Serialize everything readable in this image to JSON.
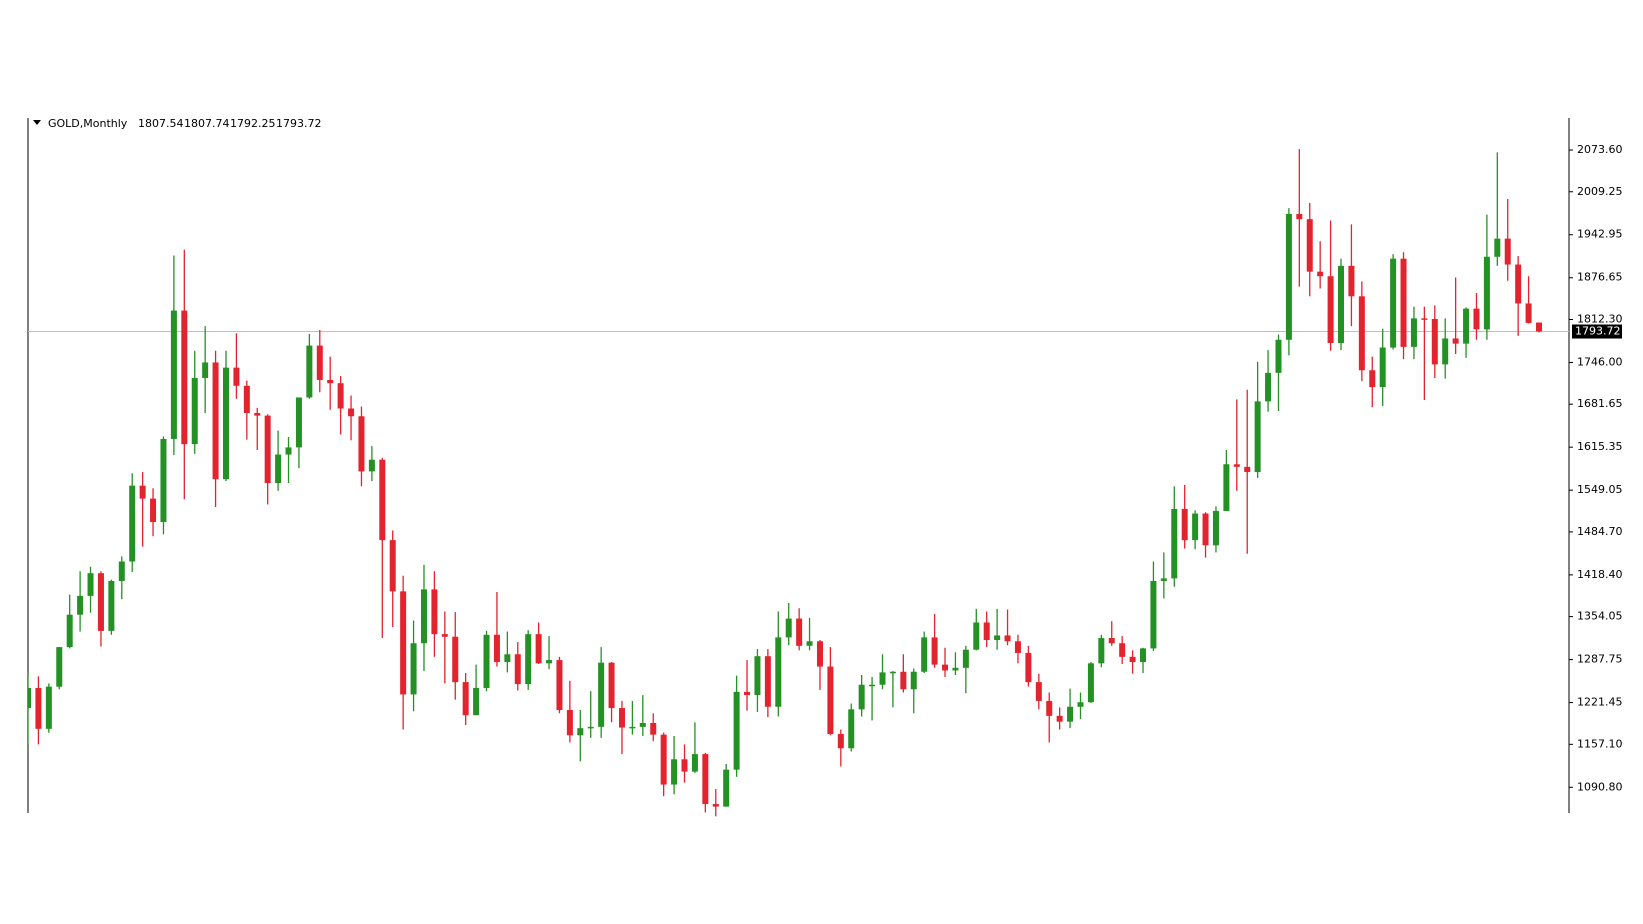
{
  "chart_data": {
    "type": "candlestick",
    "title": "GOLD,Monthly",
    "up_color": "#249124",
    "down_color": "#e3232d",
    "ylim": [
      1045,
      2123
    ],
    "yticks": [
      {
        "value": 1090.8,
        "label": "1090.80"
      },
      {
        "value": 1157.1,
        "label": "1157.10"
      },
      1221.45,
      1287.75,
      1354.05,
      {
        "value": 1418.4,
        "label": "1418.40"
      },
      {
        "value": 1484.7,
        "label": "1484.70"
      },
      1549.05,
      1615.35,
      1681.65,
      {
        "value": 1746,
        "label": "1746.00"
      },
      {
        "value": 1812.3,
        "label": "1812.30"
      },
      1876.65,
      1942.95,
      2009.25,
      {
        "value": 2073.6,
        "label": "2073.60"
      }
    ],
    "ohlc": [
      [
        1213,
        1265,
        1157,
        1244
      ],
      [
        1244,
        1262,
        1157,
        1181
      ],
      [
        1181,
        1251,
        1175,
        1246
      ],
      [
        1246,
        1307,
        1242,
        1307
      ],
      [
        1307,
        1388,
        1305,
        1357
      ],
      [
        1357,
        1424,
        1331,
        1386
      ],
      [
        1386,
        1431,
        1360,
        1421
      ],
      [
        1421,
        1424,
        1308,
        1332
      ],
      [
        1332,
        1411,
        1326,
        1409
      ],
      [
        1409,
        1447,
        1381,
        1439
      ],
      [
        1439,
        1575,
        1423,
        1556
      ],
      [
        1556,
        1577,
        1462,
        1536
      ],
      [
        1536,
        1552,
        1478,
        1500
      ],
      [
        1500,
        1632,
        1481,
        1628
      ],
      [
        1628,
        1911,
        1603,
        1826
      ],
      [
        1826,
        1920,
        1535,
        1620
      ],
      [
        1620,
        1764,
        1605,
        1722
      ],
      [
        1722,
        1802,
        1668,
        1746
      ],
      [
        1746,
        1764,
        1523,
        1566
      ],
      [
        1566,
        1764,
        1563,
        1738
      ],
      [
        1738,
        1791,
        1690,
        1710
      ],
      [
        1710,
        1718,
        1627,
        1668
      ],
      [
        1668,
        1676,
        1611,
        1664
      ],
      [
        1664,
        1666,
        1527,
        1560
      ],
      [
        1560,
        1641,
        1548,
        1604
      ],
      [
        1604,
        1631,
        1560,
        1615
      ],
      [
        1615,
        1692,
        1583,
        1692
      ],
      [
        1692,
        1790,
        1690,
        1772
      ],
      [
        1772,
        1796,
        1700,
        1719
      ],
      [
        1719,
        1755,
        1673,
        1714
      ],
      [
        1714,
        1725,
        1635,
        1675
      ],
      [
        1675,
        1695,
        1626,
        1663
      ],
      [
        1663,
        1678,
        1555,
        1578
      ],
      [
        1578,
        1617,
        1563,
        1596
      ],
      [
        1596,
        1599,
        1321,
        1472
      ],
      [
        1472,
        1487,
        1338,
        1393
      ],
      [
        1393,
        1417,
        1180,
        1234
      ],
      [
        1234,
        1348,
        1208,
        1313
      ],
      [
        1313,
        1434,
        1270,
        1396
      ],
      [
        1396,
        1424,
        1292,
        1327
      ],
      [
        1327,
        1362,
        1251,
        1323
      ],
      [
        1323,
        1361,
        1226,
        1253
      ],
      [
        1253,
        1267,
        1187,
        1202
      ],
      [
        1202,
        1280,
        1202,
        1244
      ],
      [
        1244,
        1332,
        1239,
        1326
      ],
      [
        1326,
        1392,
        1277,
        1284
      ],
      [
        1284,
        1331,
        1268,
        1296
      ],
      [
        1296,
        1315,
        1240,
        1250
      ],
      [
        1250,
        1333,
        1241,
        1327
      ],
      [
        1327,
        1345,
        1281,
        1282
      ],
      [
        1282,
        1324,
        1273,
        1287
      ],
      [
        1287,
        1292,
        1205,
        1210
      ],
      [
        1210,
        1255,
        1160,
        1171
      ],
      [
        1171,
        1210,
        1131,
        1182
      ],
      [
        1182,
        1239,
        1167,
        1184
      ],
      [
        1184,
        1307,
        1167,
        1283
      ],
      [
        1283,
        1284,
        1191,
        1213
      ],
      [
        1213,
        1224,
        1142,
        1183
      ],
      [
        1183,
        1224,
        1172,
        1184
      ],
      [
        1184,
        1233,
        1170,
        1190
      ],
      [
        1190,
        1205,
        1162,
        1172
      ],
      [
        1172,
        1175,
        1077,
        1095
      ],
      [
        1095,
        1170,
        1080,
        1134
      ],
      [
        1134,
        1157,
        1098,
        1115
      ],
      [
        1115,
        1191,
        1113,
        1142
      ],
      [
        1142,
        1144,
        1052,
        1065
      ],
      [
        1065,
        1088,
        1046,
        1061
      ],
      [
        1061,
        1127,
        1061,
        1118
      ],
      [
        1118,
        1263,
        1107,
        1238
      ],
      [
        1238,
        1287,
        1209,
        1233
      ],
      [
        1233,
        1304,
        1207,
        1293
      ],
      [
        1293,
        1304,
        1199,
        1215
      ],
      [
        1215,
        1362,
        1200,
        1322
      ],
      [
        1322,
        1375,
        1310,
        1351
      ],
      [
        1351,
        1367,
        1302,
        1309
      ],
      [
        1309,
        1352,
        1302,
        1316
      ],
      [
        1316,
        1318,
        1241,
        1277
      ],
      [
        1277,
        1307,
        1171,
        1173
      ],
      [
        1173,
        1180,
        1123,
        1151
      ],
      [
        1151,
        1220,
        1146,
        1211
      ],
      [
        1211,
        1264,
        1200,
        1249
      ],
      [
        1249,
        1261,
        1194,
        1249
      ],
      [
        1249,
        1296,
        1242,
        1268
      ],
      [
        1268,
        1270,
        1214,
        1269
      ],
      [
        1269,
        1296,
        1237,
        1242
      ],
      [
        1242,
        1274,
        1205,
        1269
      ],
      [
        1269,
        1331,
        1267,
        1322
      ],
      [
        1322,
        1358,
        1275,
        1280
      ],
      [
        1280,
        1306,
        1261,
        1271
      ],
      [
        1271,
        1299,
        1264,
        1275
      ],
      [
        1275,
        1309,
        1236,
        1303
      ],
      [
        1303,
        1366,
        1302,
        1345
      ],
      [
        1345,
        1362,
        1307,
        1318
      ],
      [
        1318,
        1366,
        1303,
        1325
      ],
      [
        1325,
        1365,
        1310,
        1316
      ],
      [
        1316,
        1326,
        1282,
        1298
      ],
      [
        1298,
        1309,
        1246,
        1253
      ],
      [
        1253,
        1266,
        1211,
        1224
      ],
      [
        1224,
        1237,
        1160,
        1201
      ],
      [
        1201,
        1214,
        1180,
        1192
      ],
      [
        1192,
        1243,
        1182,
        1215
      ],
      [
        1215,
        1237,
        1196,
        1222
      ],
      [
        1222,
        1284,
        1221,
        1282
      ],
      [
        1282,
        1326,
        1276,
        1321
      ],
      [
        1321,
        1347,
        1309,
        1313
      ],
      [
        1313,
        1324,
        1281,
        1292
      ],
      [
        1292,
        1302,
        1266,
        1284
      ],
      [
        1284,
        1306,
        1267,
        1305
      ],
      [
        1305,
        1439,
        1301,
        1409
      ],
      [
        1409,
        1453,
        1382,
        1413
      ],
      [
        1413,
        1555,
        1400,
        1520
      ],
      [
        1520,
        1557,
        1459,
        1472
      ],
      [
        1472,
        1518,
        1458,
        1513
      ],
      [
        1513,
        1515,
        1445,
        1464
      ],
      [
        1464,
        1524,
        1453,
        1517
      ],
      [
        1517,
        1611,
        1517,
        1589
      ],
      [
        1589,
        1689,
        1548,
        1585
      ],
      [
        1585,
        1704,
        1451,
        1577
      ],
      [
        1577,
        1747,
        1568,
        1686
      ],
      [
        1686,
        1765,
        1670,
        1730
      ],
      [
        1730,
        1789,
        1671,
        1781
      ],
      [
        1781,
        1984,
        1757,
        1975
      ],
      [
        1975,
        2075,
        1863,
        1967
      ],
      [
        1967,
        1992,
        1848,
        1886
      ],
      [
        1886,
        1933,
        1860,
        1879
      ],
      [
        1879,
        1965,
        1764,
        1776
      ],
      [
        1776,
        1906,
        1765,
        1895
      ],
      [
        1895,
        1959,
        1802,
        1848
      ],
      [
        1848,
        1871,
        1717,
        1734
      ],
      [
        1734,
        1755,
        1677,
        1708
      ],
      [
        1708,
        1798,
        1679,
        1769
      ],
      [
        1769,
        1913,
        1766,
        1906
      ],
      [
        1906,
        1916,
        1751,
        1770
      ],
      [
        1770,
        1832,
        1751,
        1814
      ],
      [
        1814,
        1832,
        1688,
        1813
      ],
      [
        1813,
        1834,
        1722,
        1743
      ],
      [
        1743,
        1814,
        1721,
        1783
      ],
      [
        1783,
        1877,
        1759,
        1775
      ],
      [
        1775,
        1831,
        1753,
        1829
      ],
      [
        1829,
        1853,
        1781,
        1797
      ],
      [
        1797,
        1974,
        1781,
        1909
      ],
      [
        1909,
        2070,
        1895,
        1937
      ],
      [
        1937,
        1998,
        1872,
        1897
      ],
      [
        1897,
        1910,
        1787,
        1837
      ],
      [
        1837,
        1879,
        1806,
        1807
      ],
      [
        1807.54,
        1807.74,
        1792.25,
        1793.72
      ]
    ]
  }
}
